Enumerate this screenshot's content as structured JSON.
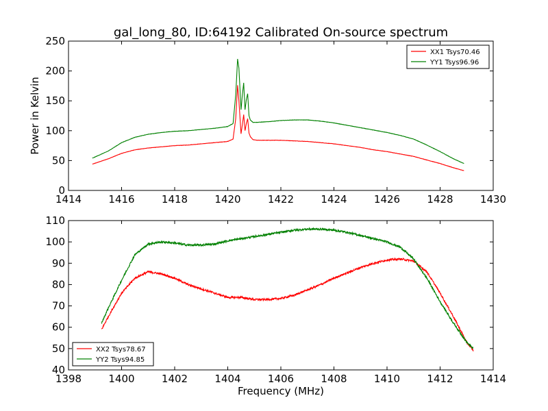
{
  "chart_data": [
    {
      "type": "line",
      "title": "gal_long_80, ID:64192 Calibrated On-source spectrum",
      "xlabel": "",
      "ylabel": "Power in Kelvin",
      "xlim": [
        1414,
        1430
      ],
      "ylim": [
        0,
        250
      ],
      "xticks": [
        "1414",
        "1416",
        "1418",
        "1420",
        "1422",
        "1424",
        "1426",
        "1428",
        "1430"
      ],
      "yticks": [
        "0",
        "50",
        "100",
        "150",
        "200",
        "250"
      ],
      "legend_position": "top-right",
      "grid": false,
      "series": [
        {
          "name": "XX1 Tsys70.46",
          "color": "#ff0000",
          "x": [
            1414.9,
            1415.5,
            1416,
            1416.5,
            1417,
            1417.5,
            1418,
            1418.5,
            1419,
            1419.5,
            1420,
            1420.2,
            1420.3,
            1420.37,
            1420.42,
            1420.5,
            1420.55,
            1420.6,
            1420.65,
            1420.7,
            1420.75,
            1420.8,
            1420.85,
            1420.95,
            1421.1,
            1421.5,
            1422,
            1422.5,
            1423,
            1423.5,
            1424,
            1424.5,
            1425,
            1425.5,
            1426,
            1426.5,
            1427,
            1427.5,
            1428,
            1428.5,
            1428.9
          ],
          "y": [
            44,
            53,
            62,
            68,
            71,
            73,
            75,
            76,
            78,
            80,
            82,
            86,
            120,
            176,
            150,
            95,
            110,
            127,
            100,
            112,
            120,
            96,
            90,
            85,
            84,
            84,
            84,
            83,
            82,
            80,
            78,
            75,
            72,
            68,
            65,
            61,
            57,
            51,
            45,
            38,
            33
          ]
        },
        {
          "name": "YY1 Tsys96.96",
          "color": "#008000",
          "x": [
            1414.9,
            1415.5,
            1416,
            1416.5,
            1417,
            1417.5,
            1418,
            1418.5,
            1419,
            1419.5,
            1420,
            1420.2,
            1420.3,
            1420.37,
            1420.42,
            1420.5,
            1420.55,
            1420.6,
            1420.65,
            1420.7,
            1420.75,
            1420.8,
            1420.85,
            1420.95,
            1421.1,
            1421.5,
            1422,
            1422.5,
            1423,
            1423.5,
            1424,
            1424.5,
            1425,
            1425.5,
            1426,
            1426.5,
            1427,
            1427.5,
            1428,
            1428.5,
            1428.9
          ],
          "y": [
            54,
            66,
            80,
            89,
            94,
            97,
            99,
            100,
            102,
            104,
            107,
            112,
            160,
            220,
            205,
            135,
            160,
            180,
            135,
            152,
            162,
            125,
            118,
            114,
            114,
            115,
            117,
            118,
            118,
            116,
            113,
            109,
            105,
            101,
            97,
            92,
            86,
            76,
            65,
            53,
            45
          ]
        }
      ]
    },
    {
      "type": "line",
      "title": "",
      "xlabel": "Frequency (MHz)",
      "ylabel": "",
      "xlim": [
        1398,
        1414
      ],
      "ylim": [
        40,
        110
      ],
      "xticks": [
        "1398",
        "1400",
        "1402",
        "1404",
        "1406",
        "1408",
        "1410",
        "1412",
        "1414"
      ],
      "yticks": [
        "40",
        "50",
        "60",
        "70",
        "80",
        "90",
        "100",
        "110"
      ],
      "legend_position": "bottom-left",
      "grid": false,
      "series": [
        {
          "name": "XX2 Tsys78.67",
          "color": "#ff0000",
          "x": [
            1399.25,
            1399.5,
            1400,
            1400.5,
            1401,
            1401.5,
            1402,
            1402.5,
            1403,
            1403.5,
            1404,
            1404.5,
            1405,
            1405.5,
            1406,
            1406.5,
            1407,
            1407.5,
            1408,
            1408.5,
            1409,
            1409.5,
            1410,
            1410.5,
            1411,
            1411.5,
            1412,
            1412.5,
            1413,
            1413.25
          ],
          "y": [
            59,
            65,
            76,
            83,
            86,
            85,
            83,
            80,
            78,
            76,
            74,
            74,
            73,
            73,
            73.5,
            75,
            77.5,
            80,
            83,
            85.5,
            88,
            90,
            91.5,
            92,
            91,
            86,
            76,
            65,
            53,
            49
          ]
        },
        {
          "name": "YY2 Tsys94.85",
          "color": "#008000",
          "x": [
            1399.25,
            1399.5,
            1400,
            1400.5,
            1401,
            1401.5,
            1402,
            1402.5,
            1403,
            1403.5,
            1404,
            1404.5,
            1405,
            1405.5,
            1406,
            1406.5,
            1407,
            1407.5,
            1408,
            1408.5,
            1409,
            1409.5,
            1410,
            1410.5,
            1411,
            1411.5,
            1412,
            1412.5,
            1413,
            1413.25
          ],
          "y": [
            62,
            69,
            82,
            94,
            99,
            100,
            99.5,
            98.5,
            98.5,
            99,
            100.5,
            101.5,
            102.5,
            103.5,
            104.5,
            105.5,
            106,
            106,
            105.5,
            104.5,
            103,
            101.5,
            100,
            97.5,
            92,
            83,
            72,
            62,
            53,
            50
          ]
        }
      ]
    }
  ]
}
